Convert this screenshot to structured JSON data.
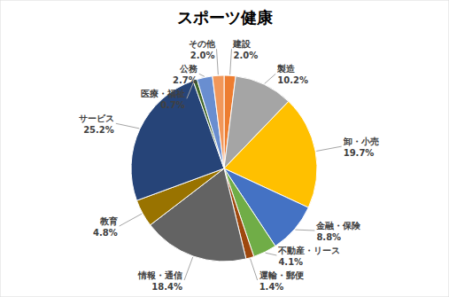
{
  "chart_data": {
    "type": "pie",
    "title": "スポーツ健康",
    "categories": [
      "建設",
      "製造",
      "卸・小売",
      "金融・保険",
      "不動産・リース",
      "運輸・郵便",
      "情報・通信",
      "教育",
      "サービス",
      "医療・福祉",
      "公務",
      "その他"
    ],
    "values": [
      2.0,
      10.2,
      19.7,
      8.8,
      4.1,
      1.4,
      18.4,
      4.8,
      25.2,
      0.7,
      2.7,
      2.0
    ],
    "value_labels": [
      "2.0%",
      "10.2%",
      "19.7%",
      "8.8%",
      "4.1%",
      "1.4%",
      "18.4%",
      "4.8%",
      "25.2%",
      "0.7%",
      "2.7%",
      "2.0%"
    ],
    "colors": [
      "#ED7D31",
      "#A5A5A5",
      "#FFC000",
      "#4472C4",
      "#70AD47",
      "#9E480E",
      "#636363",
      "#997300",
      "#264478",
      "#43682B",
      "#698ED0",
      "#F1975A"
    ],
    "data_labels": true
  }
}
